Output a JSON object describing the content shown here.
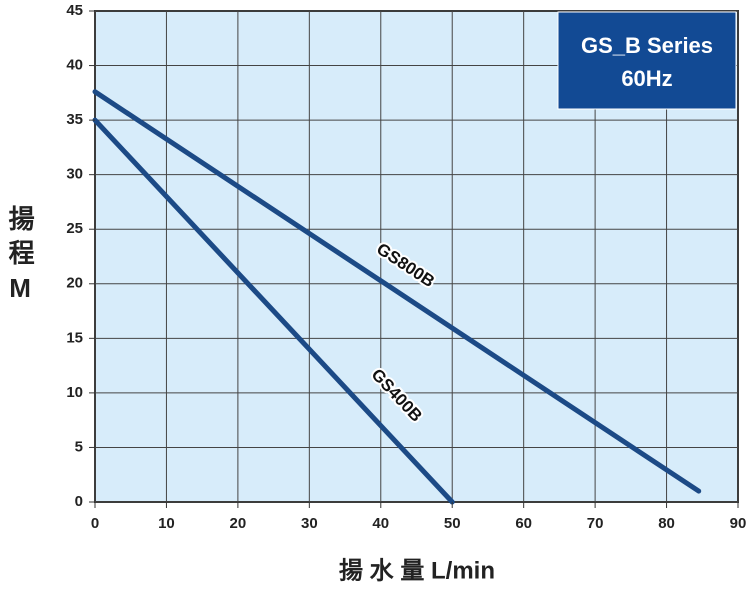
{
  "chart_data": {
    "type": "line",
    "title": "GS_B Series",
    "subtitle": "60Hz",
    "x_label": "揚 水 量 L/min",
    "y_label": "揚程M",
    "series": [
      {
        "name": "GS800B",
        "color": "#1c4a86",
        "x": [
          0,
          84.5
        ],
        "values": [
          37.6,
          1
        ]
      },
      {
        "name": "GS400B",
        "color": "#1c4a86",
        "x": [
          0,
          50
        ],
        "values": [
          35,
          0
        ]
      }
    ],
    "xlim": [
      0,
      90
    ],
    "xticks": [
      0,
      10,
      20,
      30,
      40,
      50,
      60,
      70,
      80,
      90
    ],
    "ylim": [
      0,
      45
    ],
    "yticks": [
      0,
      5,
      10,
      15,
      20,
      25,
      30,
      35,
      40,
      45
    ],
    "grid": true
  }
}
